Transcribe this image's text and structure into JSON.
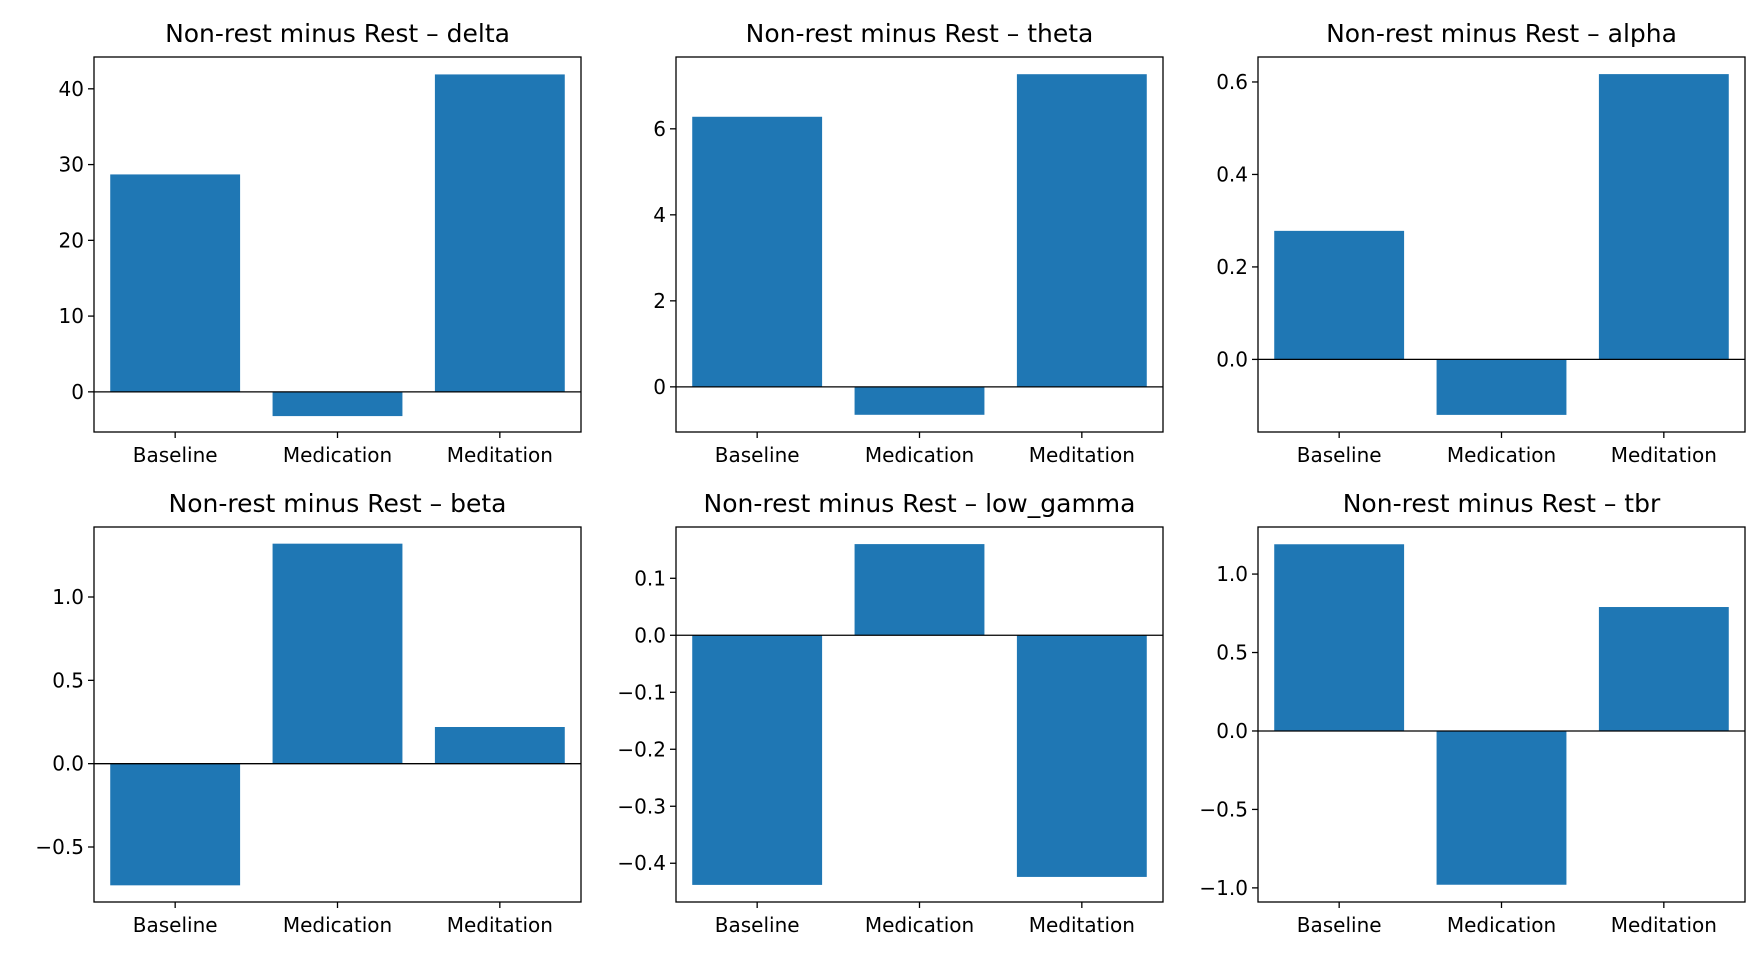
{
  "chart_data": [
    {
      "type": "bar",
      "title": "Non-rest minus Rest – delta",
      "categories": [
        "Baseline",
        "Medication",
        "Meditation"
      ],
      "values": [
        28.7,
        -3.2,
        41.9
      ],
      "ylim": [
        -5.3,
        44.2
      ],
      "yticks": [
        0,
        10,
        20,
        30,
        40
      ],
      "ytick_labels": [
        "0",
        "10",
        "20",
        "30",
        "40"
      ],
      "color": "#1f77b4",
      "zero_line": true
    },
    {
      "type": "bar",
      "title": "Non-rest minus Rest – theta",
      "categories": [
        "Baseline",
        "Medication",
        "Meditation"
      ],
      "values": [
        6.28,
        -0.65,
        7.27
      ],
      "ylim": [
        -1.05,
        7.67
      ],
      "yticks": [
        0,
        2,
        4,
        6
      ],
      "ytick_labels": [
        "0",
        "2",
        "4",
        "6"
      ],
      "color": "#1f77b4",
      "zero_line": true
    },
    {
      "type": "bar",
      "title": "Non-rest minus Rest – alpha",
      "categories": [
        "Baseline",
        "Medication",
        "Meditation"
      ],
      "values": [
        0.278,
        -0.12,
        0.617
      ],
      "ylim": [
        -0.157,
        0.654
      ],
      "yticks": [
        0,
        0.2,
        0.4,
        0.6
      ],
      "ytick_labels": [
        "0.0",
        "0.2",
        "0.4",
        "0.6"
      ],
      "color": "#1f77b4",
      "zero_line": true
    },
    {
      "type": "bar",
      "title": "Non-rest minus Rest – beta",
      "categories": [
        "Baseline",
        "Medication",
        "Meditation"
      ],
      "values": [
        -0.73,
        1.32,
        0.22
      ],
      "ylim": [
        -0.83,
        1.42
      ],
      "yticks": [
        -0.5,
        0,
        0.5,
        1.0
      ],
      "ytick_labels": [
        "−0.5",
        "0.0",
        "0.5",
        "1.0"
      ],
      "color": "#1f77b4",
      "zero_line": true
    },
    {
      "type": "bar",
      "title": "Non-rest minus Rest – low_gamma",
      "categories": [
        "Baseline",
        "Medication",
        "Meditation"
      ],
      "values": [
        -0.438,
        0.16,
        -0.424
      ],
      "ylim": [
        -0.468,
        0.19
      ],
      "yticks": [
        -0.4,
        -0.3,
        -0.2,
        -0.1,
        0,
        0.1
      ],
      "ytick_labels": [
        "−0.4",
        "−0.3",
        "−0.2",
        "−0.1",
        "0.0",
        "0.1"
      ],
      "color": "#1f77b4",
      "zero_line": true
    },
    {
      "type": "bar",
      "title": "Non-rest minus Rest – tbr",
      "categories": [
        "Baseline",
        "Medication",
        "Meditation"
      ],
      "values": [
        1.19,
        -0.98,
        0.79
      ],
      "ylim": [
        -1.09,
        1.3
      ],
      "yticks": [
        -1.0,
        -0.5,
        0,
        0.5,
        1.0
      ],
      "ytick_labels": [
        "−1.0",
        "−0.5",
        "0.0",
        "0.5",
        "1.0"
      ],
      "color": "#1f77b4",
      "zero_line": true
    }
  ]
}
